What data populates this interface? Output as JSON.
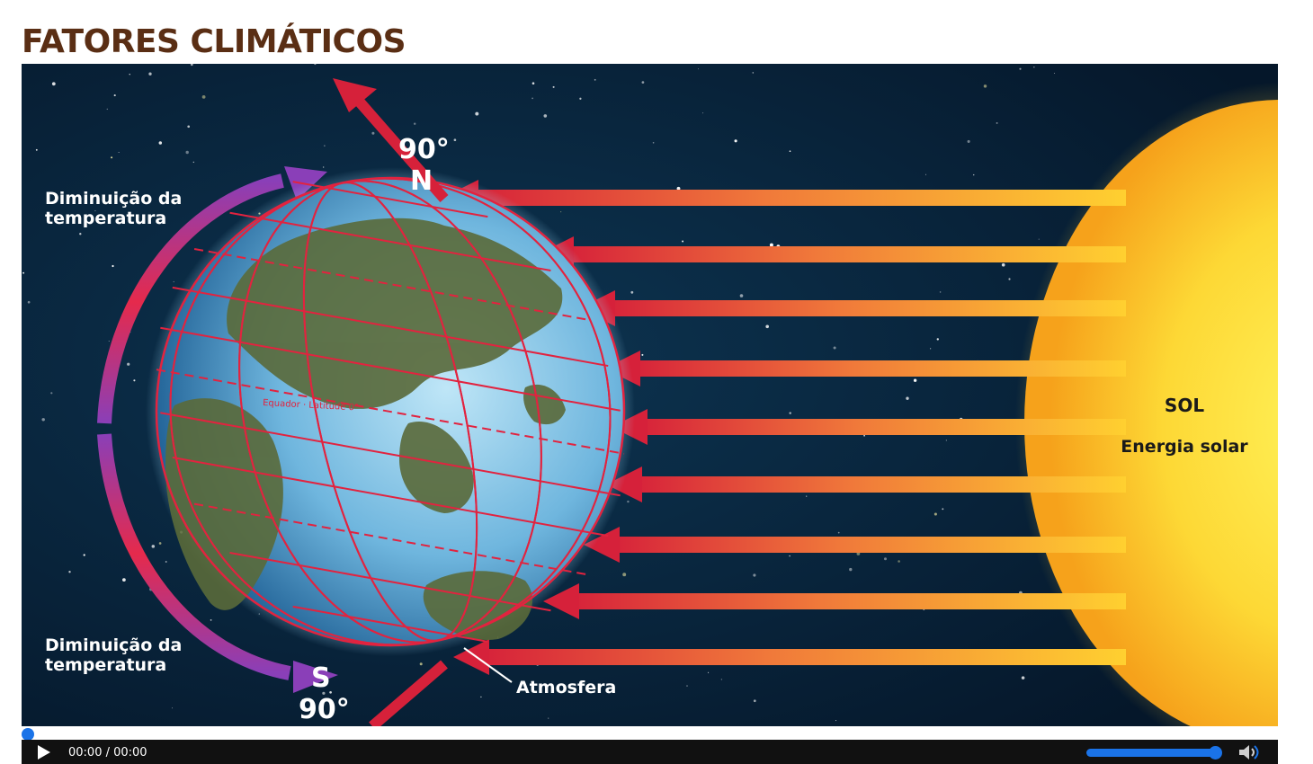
{
  "page": {
    "title": "FATORES CLIMÁTICOS"
  },
  "video": {
    "poster": {
      "top_degree": "90°",
      "top_pole": "N",
      "bottom_pole": "S",
      "bottom_degree": "90°",
      "left_top_label": [
        "Diminuição da",
        "temperatura"
      ],
      "left_bottom_label": [
        "Diminuição da",
        "temperatura"
      ],
      "equator_label": "Equador · Latitude 0°",
      "atmosphere_label": "Atmosfera",
      "sun_title": "SOL",
      "sun_subtitle": "Energia solar"
    },
    "controls": {
      "time": "00:00 / 00:00",
      "progress": 0,
      "volume": 1.0
    }
  },
  "colors": {
    "title": "#5a2e14",
    "space": "#06192c",
    "sun": "#f5c800",
    "arrow_hot": "#d6213a",
    "arrow_cool": "#ffd030",
    "accent": "#1a73e8"
  }
}
